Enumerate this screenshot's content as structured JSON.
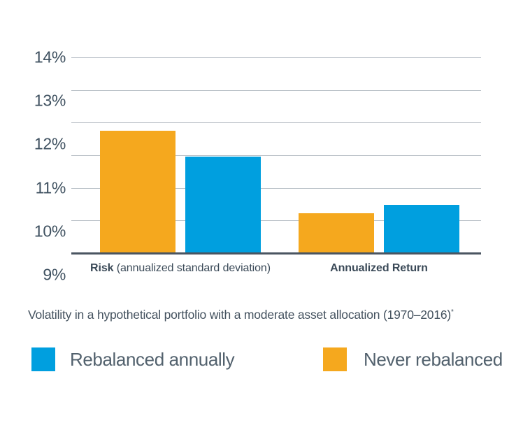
{
  "chart_data": {
    "type": "bar",
    "title": "Volatility in a hypothetical portfolio with a moderate asset allocation (1970–2016)",
    "title_note_symbol": "*",
    "categories": [
      "Risk (annualized standard deviation)",
      "Annualized Return"
    ],
    "category_labels": [
      {
        "bold": "Risk",
        "rest": " (annualized standard deviation)"
      },
      {
        "bold": "Annualized Return",
        "rest": ""
      }
    ],
    "series": [
      {
        "name": "Never rebalanced",
        "key": "never-rebalanced",
        "color": "#F5A81E",
        "values": [
          12.3,
          10.4
        ]
      },
      {
        "name": "Rebalanced annually",
        "key": "rebalanced-annually",
        "color": "#009FDF",
        "values": [
          11.7,
          10.6
        ]
      }
    ],
    "value_unit": "%",
    "y_axis": {
      "ticks": [
        {
          "label": "14%",
          "value": 14
        },
        {
          "label": "13%",
          "value": 13
        },
        {
          "label": "12%",
          "value": 12
        },
        {
          "label": "11%",
          "value": 11
        },
        {
          "label": "10%",
          "value": 10
        },
        {
          "label": "9%",
          "value": 9
        }
      ],
      "top_value": 14,
      "baseline_value": 9.5,
      "gridline_count": 7,
      "grid": true
    },
    "legend": {
      "position": "bottom",
      "items": [
        {
          "label": "Rebalanced annually",
          "key": "rebalanced-annually",
          "color": "#009FDF"
        },
        {
          "label": "Never rebalanced",
          "key": "never-rebalanced",
          "color": "#F5A81E"
        }
      ]
    }
  },
  "colors": {
    "orange": "#F5A81E",
    "blue": "#009FDF",
    "gridline": "#B9C0C7",
    "axis": "#4A5561",
    "tick_text": "#3F5160",
    "category_text": "#3B4A58",
    "caption_text": "#44525F",
    "legend_text": "#52616D",
    "background": "#FFFFFF"
  }
}
